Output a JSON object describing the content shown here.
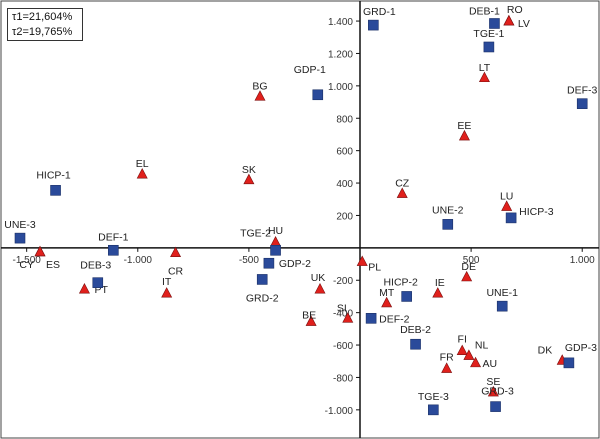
{
  "legend": [
    "τ1=21,604%",
    "τ2=19,765%"
  ],
  "chart_data": {
    "type": "scatter",
    "title": "",
    "xlabel": "",
    "ylabel": "",
    "xlim": [
      -1620,
      1080
    ],
    "ylim": [
      -1180,
      1530
    ],
    "grid": false,
    "x_ticks": [
      -1500,
      -1000,
      -500,
      500,
      1000
    ],
    "x_tick_labels": [
      "-1.500",
      "-1.000",
      "-500",
      "500",
      "1.000"
    ],
    "y_ticks": [
      1400,
      1200,
      1000,
      800,
      600,
      400,
      200,
      -200,
      -400,
      -600,
      -800,
      -1000
    ],
    "y_tick_labels": [
      "1.400",
      "1.200",
      "1.000",
      "800",
      "600",
      "400",
      "200",
      "-200",
      "-400",
      "-600",
      "-800",
      "-1.000"
    ],
    "series": [
      {
        "marker": "triangle",
        "color": "#e0201c",
        "points": [
          {
            "label": "RO",
            "x": 670,
            "y": 1400
          },
          {
            "label": "LV",
            "x": 670,
            "y": 1400
          },
          {
            "label": "LT",
            "x": 560,
            "y": 1050
          },
          {
            "label": "EE",
            "x": 470,
            "y": 690
          },
          {
            "label": "LU",
            "x": 660,
            "y": 255
          },
          {
            "label": "CZ",
            "x": 190,
            "y": 335
          },
          {
            "label": "BG",
            "x": -450,
            "y": 935
          },
          {
            "label": "SK",
            "x": -500,
            "y": 420
          },
          {
            "label": "EL",
            "x": -980,
            "y": 455
          },
          {
            "label": "HU",
            "x": -380,
            "y": 35
          },
          {
            "label": "CY",
            "x": -1440,
            "y": -25
          },
          {
            "label": "ES",
            "x": -1440,
            "y": -25
          },
          {
            "label": "CR",
            "x": -830,
            "y": -30
          },
          {
            "label": "PT",
            "x": -1240,
            "y": -255
          },
          {
            "label": "IT",
            "x": -870,
            "y": -280
          },
          {
            "label": "PL",
            "x": 10,
            "y": -85
          },
          {
            "label": "UK",
            "x": -180,
            "y": -255
          },
          {
            "label": "SI",
            "x": -55,
            "y": -435
          },
          {
            "label": "BE",
            "x": -220,
            "y": -455
          },
          {
            "label": "MT",
            "x": 120,
            "y": -340
          },
          {
            "label": "IE",
            "x": 350,
            "y": -280
          },
          {
            "label": "DE",
            "x": 480,
            "y": -180
          },
          {
            "label": "FI",
            "x": 460,
            "y": -635
          },
          {
            "label": "NL",
            "x": 490,
            "y": -665
          },
          {
            "label": "AU",
            "x": 520,
            "y": -710
          },
          {
            "label": "FR",
            "x": 390,
            "y": -745
          },
          {
            "label": "SE",
            "x": 600,
            "y": -890
          },
          {
            "label": "DK",
            "x": 910,
            "y": -695
          }
        ]
      },
      {
        "marker": "square",
        "color": "#2a4a9a",
        "points": [
          {
            "label": "GRD-1",
            "x": 60,
            "y": 1375
          },
          {
            "label": "DEB-1",
            "x": 605,
            "y": 1385
          },
          {
            "label": "TGE-1",
            "x": 580,
            "y": 1240
          },
          {
            "label": "DEF-3",
            "x": 1000,
            "y": 890
          },
          {
            "label": "GDP-1",
            "x": -190,
            "y": 945
          },
          {
            "label": "HICP-1",
            "x": -1370,
            "y": 355
          },
          {
            "label": "UNE-2",
            "x": 395,
            "y": 145
          },
          {
            "label": "HICP-3",
            "x": 680,
            "y": 185
          },
          {
            "label": "UNE-3",
            "x": -1530,
            "y": 60
          },
          {
            "label": "DEF-1",
            "x": -1110,
            "y": -15
          },
          {
            "label": "TGE-2",
            "x": -380,
            "y": -15
          },
          {
            "label": "DEB-3",
            "x": -1180,
            "y": -215
          },
          {
            "label": "GDP-2",
            "x": -410,
            "y": -95
          },
          {
            "label": "GRD-2",
            "x": -440,
            "y": -195
          },
          {
            "label": "HICP-2",
            "x": 210,
            "y": -300
          },
          {
            "label": "UNE-1",
            "x": 640,
            "y": -360
          },
          {
            "label": "DEF-2",
            "x": 50,
            "y": -435
          },
          {
            "label": "DEB-2",
            "x": 250,
            "y": -595
          },
          {
            "label": "GDP-3",
            "x": 940,
            "y": -710
          },
          {
            "label": "TGE-3",
            "x": 330,
            "y": -1000
          },
          {
            "label": "GRD-3",
            "x": 610,
            "y": -980
          }
        ]
      }
    ]
  }
}
